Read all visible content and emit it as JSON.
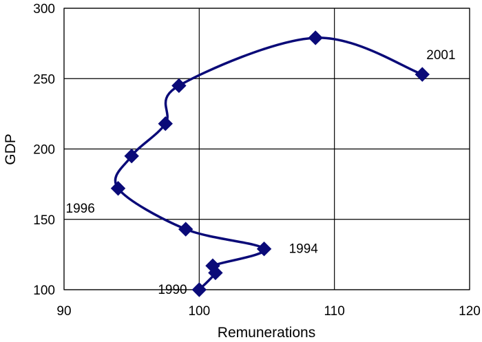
{
  "chart_data": {
    "type": "line",
    "title": "",
    "xlabel": "Remunerations",
    "ylabel": "GDP",
    "xlim": [
      90,
      120
    ],
    "ylim": [
      100,
      300
    ],
    "xticks": [
      90,
      100,
      110,
      120
    ],
    "yticks": [
      100,
      150,
      200,
      250,
      300
    ],
    "grid": true,
    "series": [
      {
        "points": [
          {
            "x": 100.0,
            "y": 100
          },
          {
            "x": 101.2,
            "y": 112
          },
          {
            "x": 101.0,
            "y": 117
          },
          {
            "x": 104.8,
            "y": 129
          },
          {
            "x": 99.0,
            "y": 143
          },
          {
            "x": 94.0,
            "y": 172
          },
          {
            "x": 95.0,
            "y": 195
          },
          {
            "x": 97.5,
            "y": 218
          },
          {
            "x": 98.5,
            "y": 245
          },
          {
            "x": 108.6,
            "y": 279
          },
          {
            "x": 116.5,
            "y": 253
          }
        ]
      }
    ],
    "annotations": [
      {
        "text": "1990",
        "x": 100.0,
        "y": 100
      },
      {
        "text": "1994",
        "x": 104.8,
        "y": 129
      },
      {
        "text": "1996",
        "x": 94.0,
        "y": 172
      },
      {
        "text": "2001",
        "x": 116.5,
        "y": 253
      }
    ],
    "colors": {
      "series": "#0a0a78",
      "grid": "#000000"
    }
  }
}
